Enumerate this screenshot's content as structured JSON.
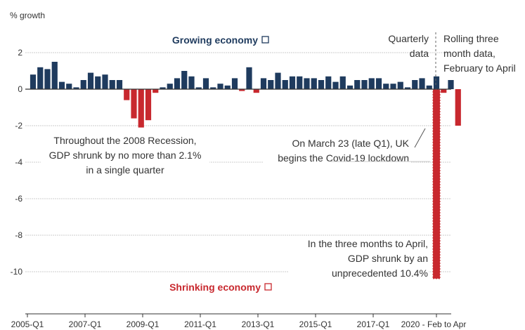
{
  "chart_data": {
    "type": "bar",
    "ylabel": "% growth",
    "ylim": [
      -11,
      2.6
    ],
    "yticks": [
      2,
      0,
      -2,
      -4,
      -6,
      -8,
      -10
    ],
    "x_tick_labels": [
      "2005-Q1",
      "2007-Q1",
      "2009-Q1",
      "2011-Q1",
      "2013-Q1",
      "2015-Q1",
      "2017-Q1",
      "2020 - Feb to Apr"
    ],
    "start_quarter": "2005-Q1",
    "quarterly_values": [
      0.8,
      1.2,
      1.1,
      1.5,
      0.4,
      0.3,
      0.1,
      0.5,
      0.9,
      0.7,
      0.8,
      0.5,
      0.5,
      -0.6,
      -1.6,
      -2.1,
      -1.7,
      -0.2,
      0.1,
      0.3,
      0.6,
      1.0,
      0.7,
      0.1,
      0.6,
      0.1,
      0.3,
      0.2,
      0.6,
      -0.1,
      1.2,
      -0.2,
      0.6,
      0.5,
      0.9,
      0.5,
      0.7,
      0.7,
      0.6,
      0.6,
      0.5,
      0.7,
      0.4,
      0.7,
      0.2,
      0.5,
      0.5,
      0.6,
      0.6,
      0.3,
      0.3,
      0.4,
      0.1,
      0.5,
      0.6,
      0.2,
      0.7,
      -0.2,
      0.5,
      -2.0
    ],
    "rolling_label": "Feb to Apr 2020",
    "rolling_value": -10.4,
    "colors": {
      "positive": "#1f3b5e",
      "negative": "#c8282e",
      "axis": "#333333",
      "grid": "#cccccc"
    },
    "legend": {
      "growing": "Growing economy",
      "shrinking": "Shrinking economy"
    },
    "annotations": {
      "quarterly": [
        "Quarterly",
        "data"
      ],
      "rolling": [
        "Rolling three",
        "month data,",
        "February to April"
      ],
      "recession": [
        "Throughout the 2008 Recession,",
        "GDP shrunk by no more than 2.1%",
        "in a single quarter"
      ],
      "lockdown": [
        "On March 23 (late Q1), UK",
        "begins the Covid-19 lockdown"
      ],
      "april": [
        "In the three months to April,",
        "GDP shrunk by an",
        "unprecedented 10.4%"
      ]
    }
  }
}
